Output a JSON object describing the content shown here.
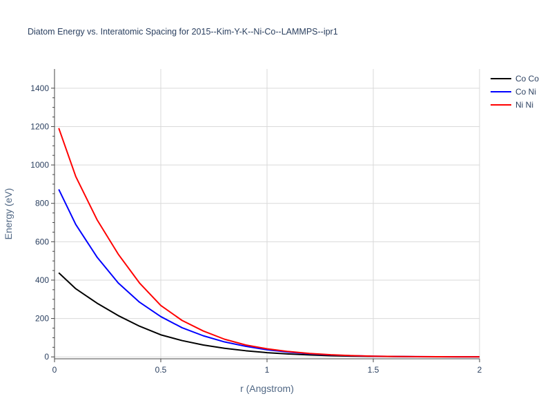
{
  "chart_data": {
    "type": "line",
    "title": "Diatom Energy vs. Interatomic Spacing for 2015--Kim-Y-K--Ni-Co--LAMMPS--ipr1",
    "xlabel": "r (Angstrom)",
    "ylabel": "Energy (eV)",
    "xlim": [
      0,
      2
    ],
    "ylim": [
      -10,
      1500
    ],
    "xticks": [
      "0",
      "0.5",
      "1",
      "1.5",
      "2"
    ],
    "yticks": [
      "0",
      "200",
      "400",
      "600",
      "800",
      "1000",
      "1200",
      "1400"
    ],
    "grid": true,
    "legend_position": "top-right",
    "x": [
      0.02,
      0.1,
      0.2,
      0.3,
      0.4,
      0.5,
      0.6,
      0.7,
      0.8,
      0.9,
      1.0,
      1.1,
      1.2,
      1.3,
      1.4,
      1.5,
      1.6,
      1.7,
      1.8,
      1.9,
      2.0
    ],
    "series": [
      {
        "name": "Co Co",
        "color": "#000000",
        "values": [
          438,
          355,
          280,
          215,
          160,
          115,
          85,
          62,
          45,
          32,
          22,
          15,
          10,
          6,
          4,
          2.5,
          1.5,
          1,
          0.5,
          0.3,
          0.2
        ]
      },
      {
        "name": "Co Ni",
        "color": "#0000ff",
        "values": [
          873,
          690,
          520,
          385,
          285,
          210,
          152,
          110,
          78,
          55,
          37,
          25,
          16,
          10,
          6,
          3.5,
          2,
          1.2,
          0.7,
          0.4,
          0.2
        ]
      },
      {
        "name": "Ni Ni",
        "color": "#ff0000",
        "values": [
          1192,
          940,
          715,
          535,
          385,
          268,
          190,
          135,
          92,
          62,
          42,
          28,
          18,
          11,
          6.5,
          3.5,
          2,
          1.2,
          0.7,
          0.4,
          0.2
        ]
      }
    ]
  }
}
